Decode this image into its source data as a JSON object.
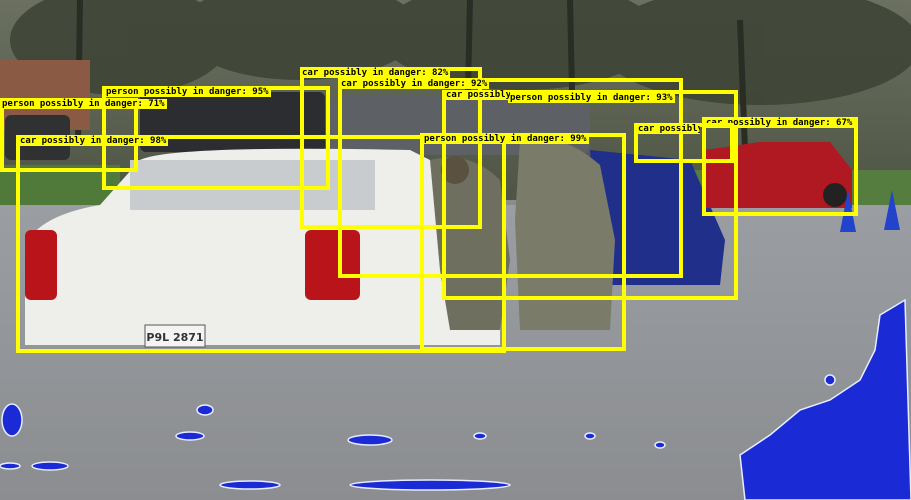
{
  "image": {
    "description_colors": {
      "box": "#ffff00",
      "label_text": "#000000",
      "water_overlay": "#1a2bd6"
    }
  },
  "detections": [
    {
      "label": "car possibly in danger: 82%"
    },
    {
      "label": "car possibly in danger: 92%"
    },
    {
      "label": "person possibly in danger: 95%"
    },
    {
      "label": "person possibly in danger: 71%"
    },
    {
      "label": "car possibly in danger: 98%"
    },
    {
      "label": "person possibly in danger: 93%"
    },
    {
      "label": "person possibly in danger: 99%"
    },
    {
      "label": "car possibly in danger: 67%"
    },
    {
      "label": "car possibly in danger: 98%"
    },
    {
      "label": "car possibly in danger: 90%"
    }
  ],
  "plate": {
    "text": "P9L 2871"
  }
}
